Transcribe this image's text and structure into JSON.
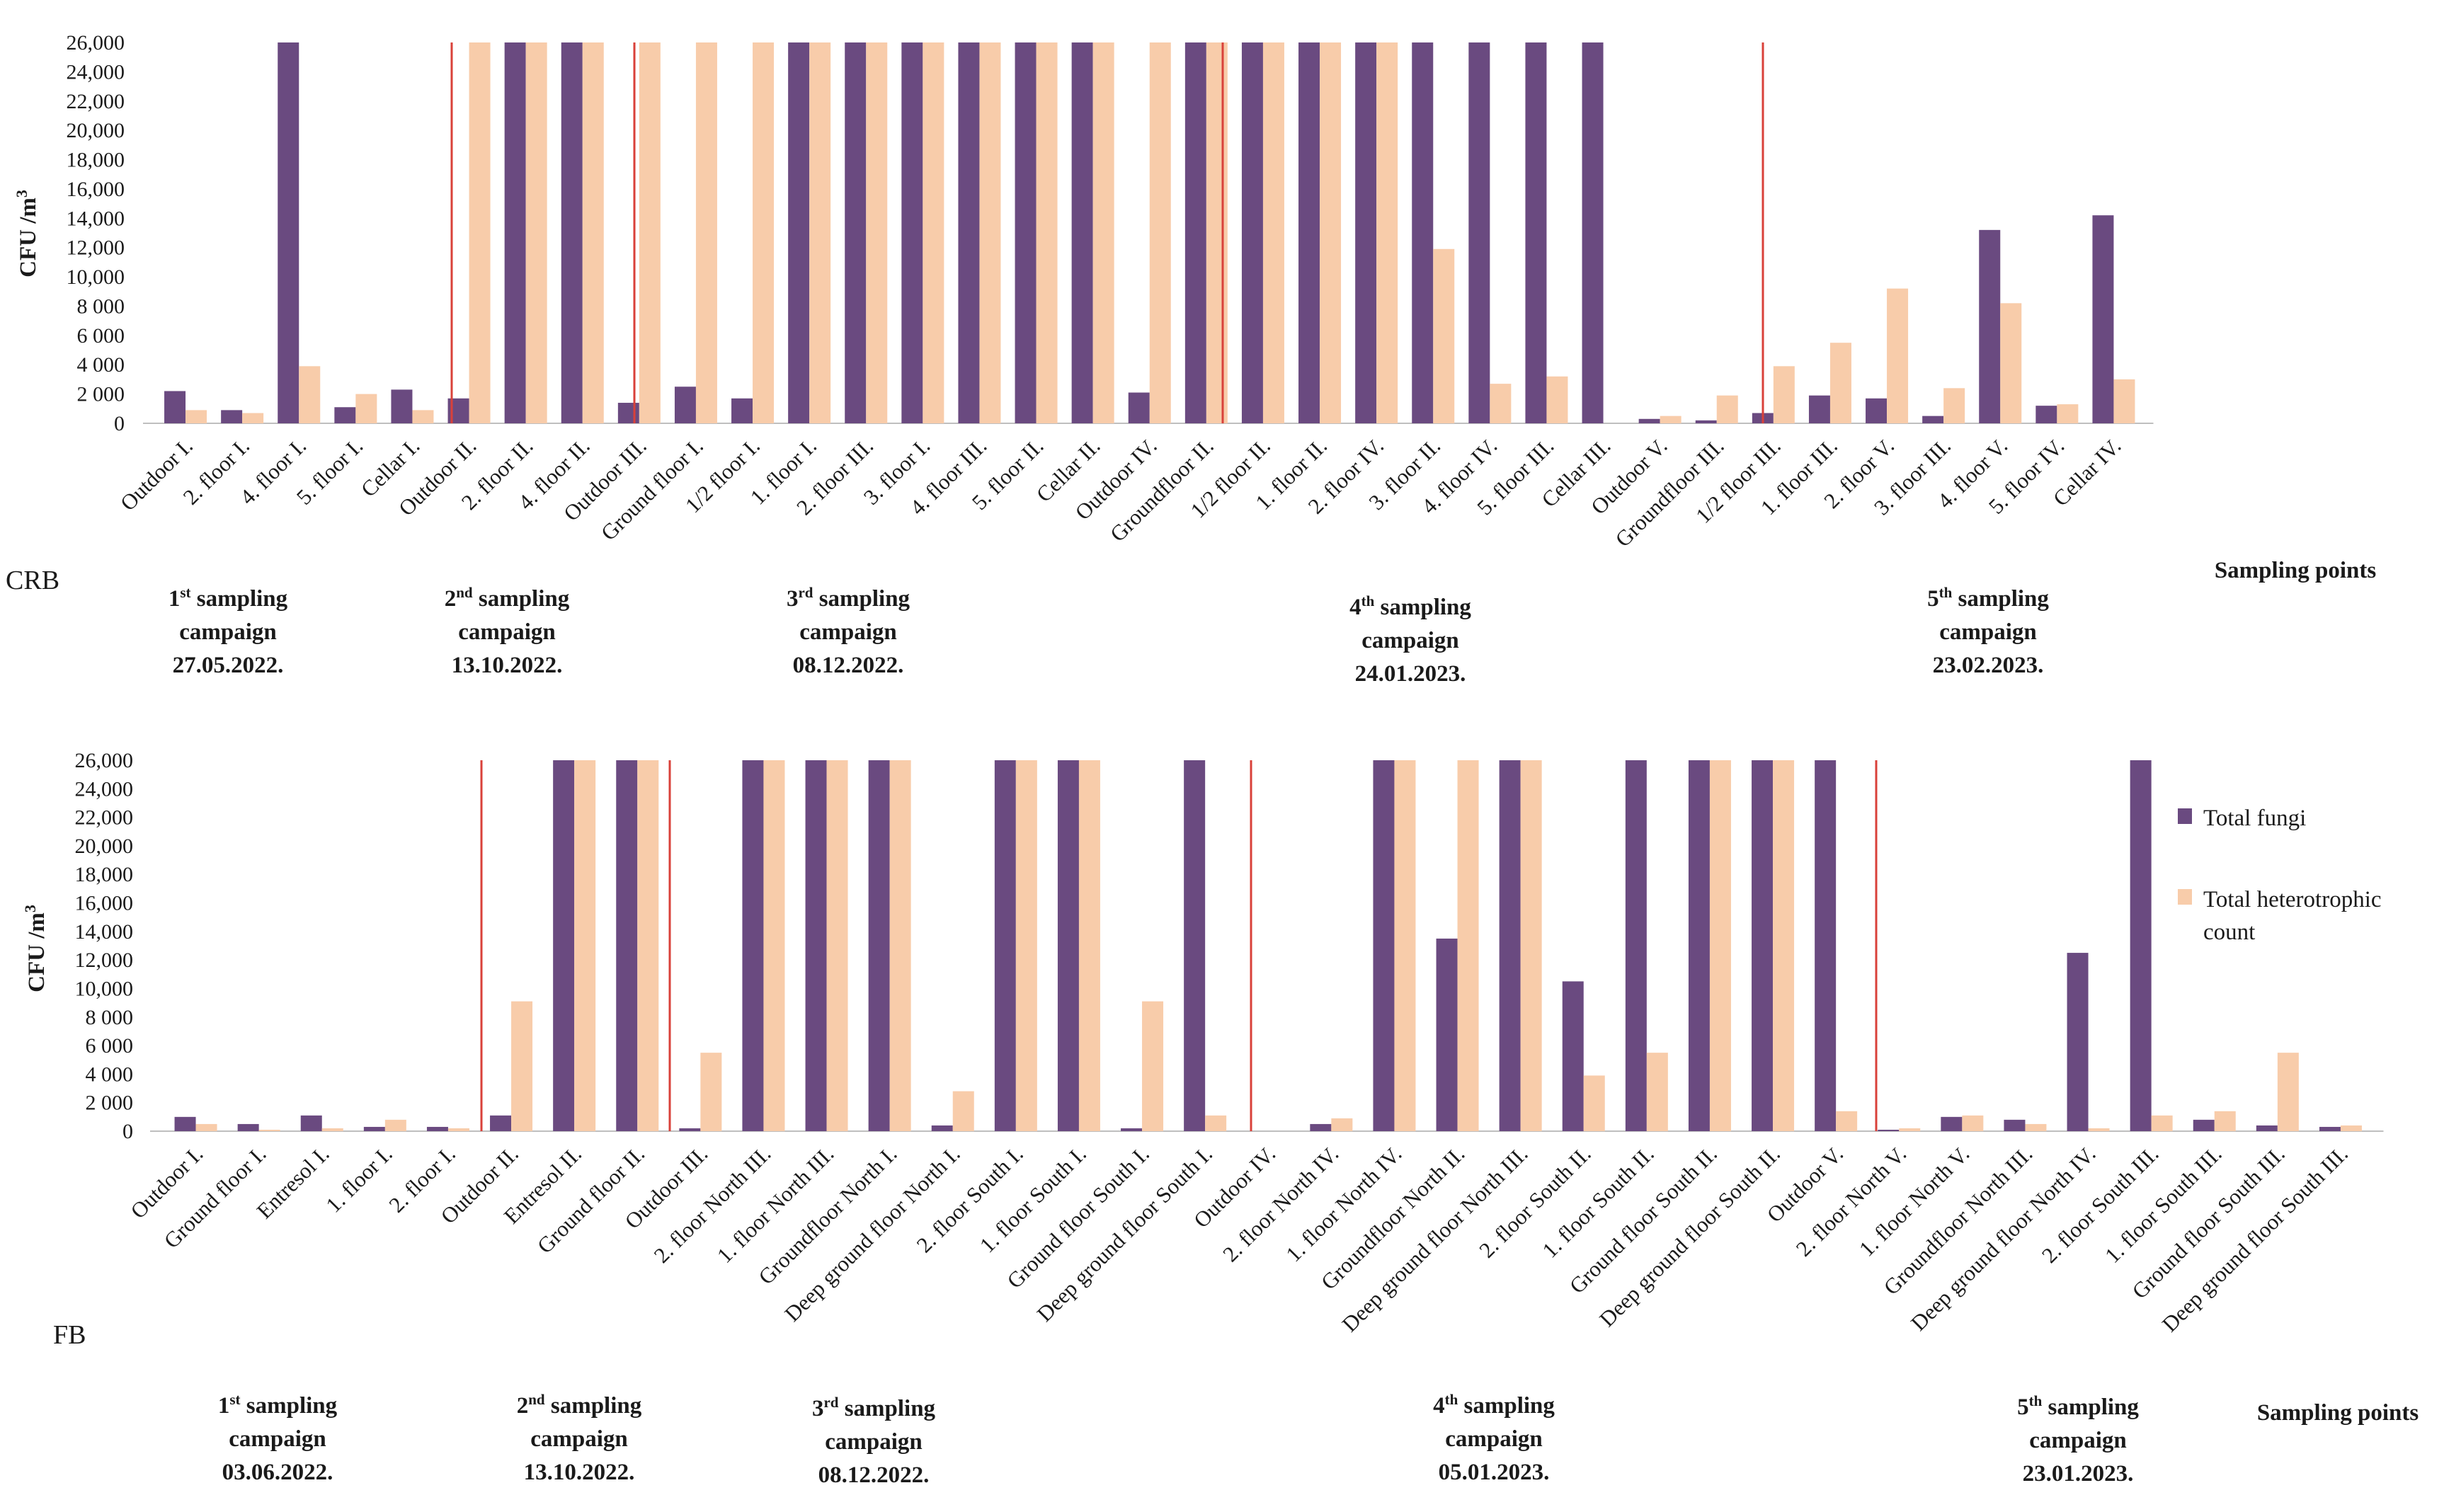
{
  "colors": {
    "fungi": "#6a4a80",
    "heterotrophic": "#f8ccaa",
    "divider": "#d9413a",
    "axis": "#bfbfbf"
  },
  "legend": {
    "fungi": "Total fungi",
    "heterotrophic_line1": "Total heterotrophic",
    "heterotrophic_line2": "count"
  },
  "chart_data": [
    {
      "type": "bar",
      "panel_label": "CRB",
      "ylabel": "CFU /m",
      "ylabel_sup": "3",
      "xlabel": "Sampling points",
      "ylim": [
        0,
        26000
      ],
      "yticks": [
        "0",
        "2 000",
        "4 000",
        "6 000",
        "8 000",
        "10,000",
        "12,000",
        "14,000",
        "16,000",
        "18,000",
        "20,000",
        "22,000",
        "24,000",
        "26,000"
      ],
      "series_names": [
        "Total fungi",
        "Total heterotrophic count"
      ],
      "dividers_after": [
        4,
        6,
        14,
        23
      ],
      "categories": [
        "Outdoor I.",
        "2. floor I.",
        "4. floor I.",
        "5. floor I.",
        "Cellar I.",
        "Outdoor II.",
        "2. floor II.",
        "4. floor II.",
        "Outdoor III.",
        "Ground floor I.",
        "1/2 floor I.",
        "1. floor I.",
        "2. floor III.",
        "3. floor I.",
        "4. floor III.",
        "5. floor II.",
        "Cellar II.",
        "Outdoor IV.",
        "Groundfloor II.",
        "1/2 floor II.",
        "1. floor II.",
        "2. floor IV.",
        "3. floor II.",
        "4. floor IV.",
        "5. floor III.",
        "Cellar III.",
        "Outdoor V.",
        "Groundfloor III.",
        "1/2 floor III.",
        "1. floor III.",
        "2. floor V.",
        "3. floor III.",
        "4. floor V.",
        "5. floor IV.",
        "Cellar IV."
      ],
      "fungi": [
        2200,
        900,
        26000,
        1100,
        2300,
        1700,
        26000,
        26000,
        1400,
        2500,
        1700,
        26000,
        26000,
        26000,
        26000,
        26000,
        26000,
        2100,
        26000,
        26000,
        26000,
        26000,
        26000,
        26000,
        26000,
        26000,
        300,
        200,
        700,
        1900,
        1700,
        500,
        13200,
        1200,
        14200
      ],
      "heterotrophic": [
        900,
        700,
        3900,
        2000,
        900,
        26000,
        26000,
        26000,
        26000,
        26000,
        26000,
        26000,
        26000,
        26000,
        26000,
        26000,
        26000,
        26000,
        26000,
        26000,
        26000,
        26000,
        11900,
        2700,
        3200,
        0,
        500,
        1900,
        3900,
        5500,
        9200,
        2400,
        8200,
        1300,
        3000
      ],
      "campaigns": [
        {
          "ordinal": "1",
          "sup": "st",
          "word": " sampling",
          "line2": "campaign",
          "date": "27.05.2022."
        },
        {
          "ordinal": "2",
          "sup": "nd",
          "word": " sampling",
          "line2": "campaign",
          "date": "13.10.2022."
        },
        {
          "ordinal": "3",
          "sup": "rd",
          "word": " sampling",
          "line2": "campaign",
          "date": "08.12.2022."
        },
        {
          "ordinal": "4",
          "sup": "th",
          "word": " sampling",
          "line2": "campaign",
          "date": "24.01.2023."
        },
        {
          "ordinal": "5",
          "sup": "th",
          "word": " sampling",
          "line2": "campaign",
          "date": "23.02.2023."
        }
      ]
    },
    {
      "type": "bar",
      "panel_label": "FB",
      "ylabel": "CFU /m",
      "ylabel_sup": "3",
      "xlabel": "Sampling points",
      "ylim": [
        0,
        26000
      ],
      "yticks": [
        "0",
        "2 000",
        "4 000",
        "6 000",
        "8 000",
        "10,000",
        "12,000",
        "14,000",
        "16,000",
        "18,000",
        "20,000",
        "22,000",
        "24,000",
        "26,000"
      ],
      "series_names": [
        "Total fungi",
        "Total heterotrophic count"
      ],
      "dividers_after": [
        4,
        7,
        16,
        25
      ],
      "categories": [
        "Outdoor I.",
        "Ground floor I.",
        "Entresol I.",
        "1. floor I.",
        "2. floor I.",
        "Outdoor II.",
        "Entresol II.",
        "Ground floor II.",
        "Outdoor III.",
        "2. floor North III.",
        "1. floor North III.",
        "Groundfloor North I.",
        "Deep ground floor North I.",
        "2. floor South I.",
        "1. floor South I.",
        "Ground floor South I.",
        "Deep ground floor South I.",
        "Outdoor IV.",
        "2. floor North IV.",
        "1. floor North IV.",
        "Groundfloor North II.",
        "Deep ground floor North III.",
        "2. floor South II.",
        "1. floor South II.",
        "Ground floor South II.",
        "Deep ground floor South II.",
        "Outdoor V.",
        "2. floor North V.",
        "1. floor North V.",
        "Groundfloor North III.",
        "Deep ground floor North IV.",
        "2. floor South III.",
        "1. floor South III.",
        "Ground floor South III.",
        "Deep ground floor South III."
      ],
      "fungi": [
        1000,
        500,
        1100,
        300,
        300,
        1100,
        26000,
        26000,
        200,
        26000,
        26000,
        26000,
        400,
        26000,
        26000,
        200,
        26000,
        0,
        500,
        26000,
        13500,
        26000,
        10500,
        26000,
        26000,
        26000,
        26000,
        100,
        1000,
        800,
        12500,
        26000,
        800,
        400,
        300
      ],
      "heterotrophic": [
        500,
        100,
        200,
        800,
        200,
        9100,
        26000,
        26000,
        5500,
        26000,
        26000,
        26000,
        2800,
        26000,
        26000,
        9100,
        1100,
        0,
        900,
        26000,
        26000,
        26000,
        3900,
        5500,
        26000,
        26000,
        1400,
        200,
        1100,
        500,
        200,
        1100,
        1400,
        5500,
        400
      ],
      "campaigns": [
        {
          "ordinal": "1",
          "sup": "st",
          "word": " sampling",
          "line2": "campaign",
          "date": "03.06.2022."
        },
        {
          "ordinal": "2",
          "sup": "nd",
          "word": " sampling",
          "line2": "campaign",
          "date": "13.10.2022."
        },
        {
          "ordinal": "3",
          "sup": "rd",
          "word": " sampling",
          "line2": "campaign",
          "date": "08.12.2022."
        },
        {
          "ordinal": "4",
          "sup": "th",
          "word": " sampling",
          "line2": "campaign",
          "date": "05.01.2023."
        },
        {
          "ordinal": "5",
          "sup": "th",
          "word": " sampling",
          "line2": "campaign",
          "date": "23.01.2023."
        }
      ]
    }
  ]
}
